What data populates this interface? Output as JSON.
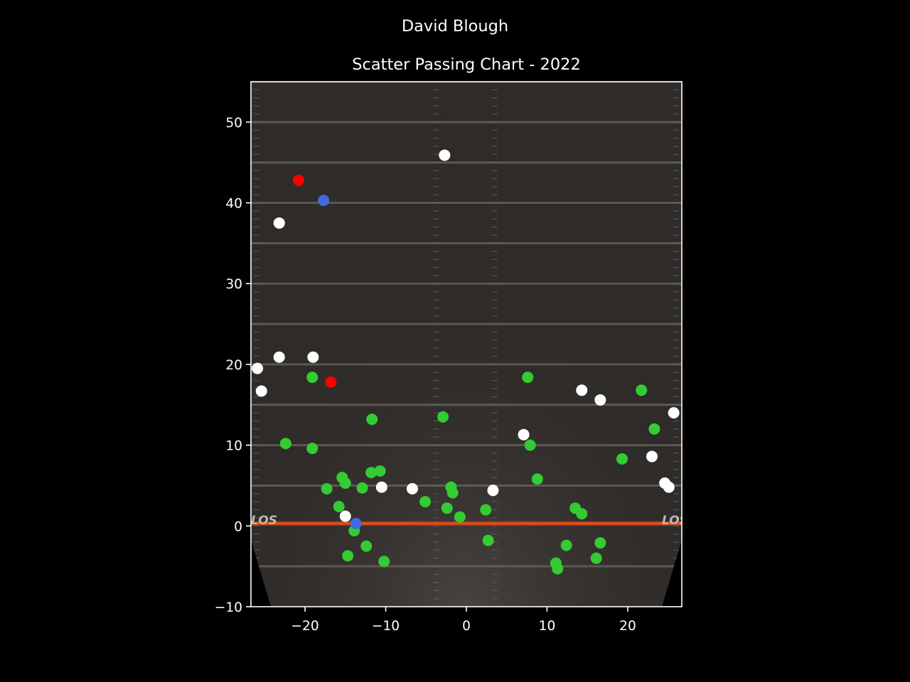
{
  "chart_data": {
    "type": "scatter",
    "suptitle": "David Blough",
    "title": "Scatter Passing Chart - 2022",
    "xlabel": "",
    "ylabel": "",
    "xlim": [
      -26.7,
      26.7
    ],
    "ylim": [
      -10,
      55
    ],
    "xticks": [
      -20,
      -10,
      0,
      10,
      20
    ],
    "yticks": [
      -10,
      0,
      10,
      20,
      30,
      40,
      50
    ],
    "grid": false,
    "background": "football field image",
    "field_label": "LOS",
    "colors": {
      "background": "#000000",
      "field": "#2e2b29",
      "yard_line": "#6b6661",
      "los_line": "#c0380e",
      "complete": "#33cc33",
      "incomplete": "#ffffff",
      "interception": "#ff0000",
      "touchdown": "#4169e1"
    },
    "series": [
      {
        "color": "#33cc33",
        "points": [
          [
            -22.4,
            10.2
          ],
          [
            -19.1,
            18.4
          ],
          [
            -19.1,
            9.6
          ],
          [
            -17.3,
            4.6
          ],
          [
            -15.8,
            2.4
          ],
          [
            -15.4,
            6.0
          ],
          [
            -15.0,
            5.3
          ],
          [
            -14.7,
            -3.7
          ],
          [
            -13.9,
            -0.6
          ],
          [
            -12.9,
            4.7
          ],
          [
            -12.4,
            -2.5
          ],
          [
            -11.8,
            6.6
          ],
          [
            -11.7,
            13.2
          ],
          [
            -10.7,
            6.8
          ],
          [
            -10.2,
            -4.4
          ],
          [
            -5.1,
            3.0
          ],
          [
            -2.9,
            13.5
          ],
          [
            -2.4,
            2.2
          ],
          [
            -1.9,
            4.8
          ],
          [
            -1.7,
            4.1
          ],
          [
            -0.8,
            1.1
          ],
          [
            2.4,
            2.0
          ],
          [
            2.7,
            -1.8
          ],
          [
            7.6,
            18.4
          ],
          [
            7.9,
            10.0
          ],
          [
            8.8,
            5.8
          ],
          [
            11.1,
            -4.6
          ],
          [
            11.3,
            -5.3
          ],
          [
            12.4,
            -2.4
          ],
          [
            13.5,
            2.2
          ],
          [
            14.3,
            1.5
          ],
          [
            16.1,
            -4.0
          ],
          [
            16.6,
            -2.1
          ],
          [
            19.3,
            8.3
          ],
          [
            21.7,
            16.8
          ],
          [
            23.3,
            12.0
          ]
        ]
      },
      {
        "color": "#ffffff",
        "points": [
          [
            -25.9,
            19.5
          ],
          [
            -25.4,
            16.7
          ],
          [
            -23.2,
            37.5
          ],
          [
            -23.2,
            20.9
          ],
          [
            -19.0,
            20.9
          ],
          [
            -15.0,
            1.2
          ],
          [
            -10.5,
            4.8
          ],
          [
            -6.7,
            4.6
          ],
          [
            -2.7,
            45.9
          ],
          [
            3.3,
            4.4
          ],
          [
            7.1,
            11.3
          ],
          [
            14.3,
            16.8
          ],
          [
            16.6,
            15.6
          ],
          [
            23.0,
            8.6
          ],
          [
            24.6,
            5.3
          ],
          [
            25.1,
            4.8
          ],
          [
            25.7,
            14.0
          ]
        ]
      },
      {
        "color": "#ff0000",
        "points": [
          [
            -20.8,
            42.8
          ],
          [
            -16.8,
            17.8
          ]
        ]
      },
      {
        "color": "#4169e1",
        "points": [
          [
            -17.7,
            40.3
          ],
          [
            -13.7,
            0.3
          ]
        ]
      }
    ]
  }
}
